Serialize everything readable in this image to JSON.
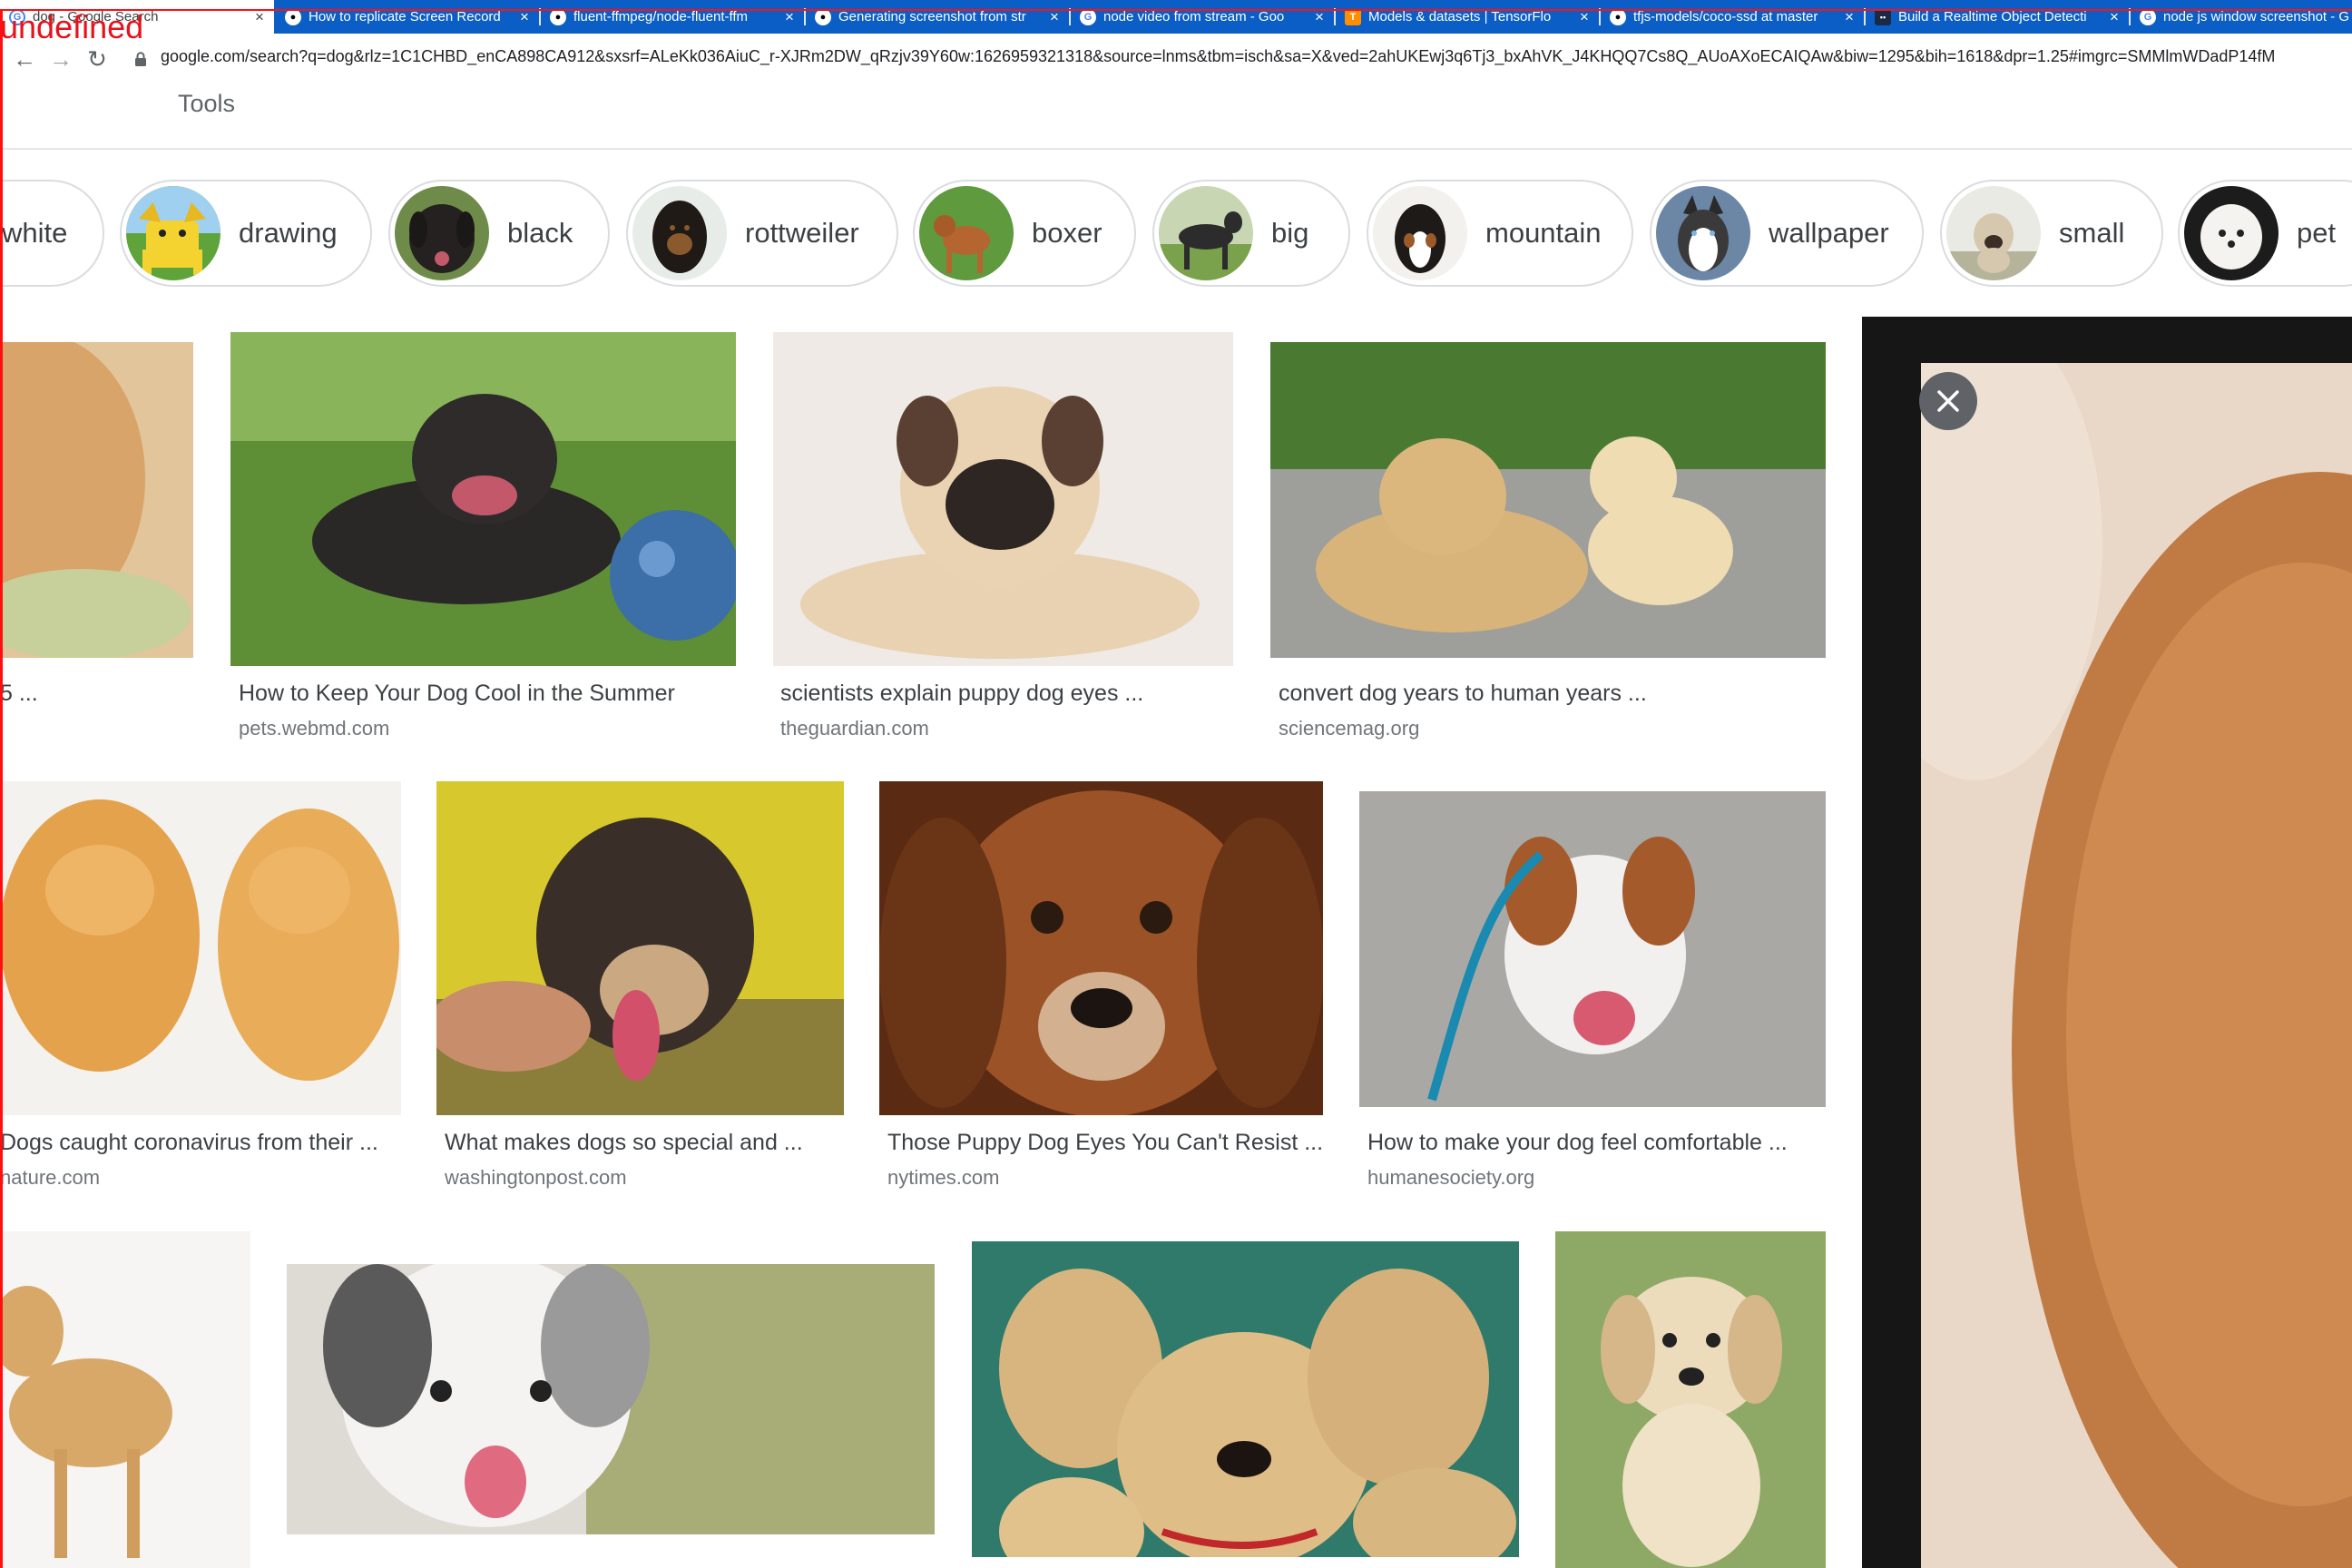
{
  "browser": {
    "tabs": [
      {
        "title": "dog - Google Search",
        "favicon": "google-icon",
        "active": true
      },
      {
        "title": "How to replicate Screen Record",
        "favicon": "github-icon"
      },
      {
        "title": "fluent-ffmpeg/node-fluent-ffm",
        "favicon": "github-icon"
      },
      {
        "title": "Generating screenshot from str",
        "favicon": "github-icon"
      },
      {
        "title": "node video from stream - Goo",
        "favicon": "google-icon"
      },
      {
        "title": "Models & datasets | TensorFlo",
        "favicon": "tensorflow-icon"
      },
      {
        "title": "tfjs-models/coco-ssd at master",
        "favicon": "github-icon"
      },
      {
        "title": "Build a Realtime Object Detecti",
        "favicon": "site-icon"
      },
      {
        "title": "node js window screenshot - G",
        "favicon": "google-icon"
      }
    ],
    "close_glyph": "×",
    "url": "google.com/search?q=dog&rlz=1C1CHBD_enCA898CA912&sxsrf=ALeKk036AiuC_r-XJRm2DW_qRzjv39Y60w:1626959321318&source=lnms&tbm=isch&sa=X&ved=2ahUKEwj3q6Tj3_bxAhVK_J4KHQQ7Cs8Q_AUoAXoECAIQAw&biw=1295&bih=1618&dpr=1.25#imgrc=SMMlmWDadP14fM",
    "nav": {
      "back": "←",
      "forward": "→",
      "reload": "↻"
    }
  },
  "search": {
    "tools_label": "Tools",
    "chips": [
      {
        "label": "white",
        "thumb_color": "#e8e0d6"
      },
      {
        "label": "drawing",
        "thumb_color": "#f2d22e"
      },
      {
        "label": "black",
        "thumb_color": "#2e2a28"
      },
      {
        "label": "rottweiler",
        "thumb_color": "#4a3424"
      },
      {
        "label": "boxer",
        "thumb_color": "#b5652f"
      },
      {
        "label": "big",
        "thumb_color": "#3f3f3f"
      },
      {
        "label": "mountain",
        "thumb_color": "#5a4636"
      },
      {
        "label": "wallpaper",
        "thumb_color": "#6c7f95"
      },
      {
        "label": "small",
        "thumb_color": "#cdbfa8"
      },
      {
        "label": "pet",
        "thumb_color": "#f1eeea"
      }
    ]
  },
  "results": [
    {
      "caption": "",
      "source": "",
      "color": "#d9b07a"
    },
    {
      "caption": "How to Keep Your Dog Cool in the Summer",
      "source": "pets.webmd.com",
      "color": "#5b8a32"
    },
    {
      "caption": "scientists explain puppy dog eyes ...",
      "source": "theguardian.com",
      "color": "#ece6e0"
    },
    {
      "caption": "convert dog years to human years ...",
      "source": "sciencemag.org",
      "color": "#7d8f5e"
    },
    {
      "caption": "Dogs caught coronavirus from their ...",
      "source": "nature.com",
      "color": "#e2a24e"
    },
    {
      "caption": "What makes dogs so special and ...",
      "source": "washingtonpost.com",
      "color": "#c9bc3a"
    },
    {
      "caption": "Those Puppy Dog Eyes You Can't Resist ...",
      "source": "nytimes.com",
      "color": "#7a3f1c"
    },
    {
      "caption": "How to make your dog feel comfortable ...",
      "source": "humanesociety.org",
      "color": "#a8a6a2"
    },
    {
      "caption": "",
      "source": "",
      "color": "#d8a868"
    },
    {
      "caption": "",
      "source": "",
      "color": "#aab07a"
    },
    {
      "caption": "",
      "source": "",
      "color": "#c9a36a"
    },
    {
      "caption": "",
      "source": "",
      "color": "#e2cfa8"
    }
  ],
  "preview": {
    "close_glyph": "✕",
    "image_color": "#c98a55"
  },
  "overlay": {
    "label": "undefined",
    "color": "#ff1010"
  }
}
